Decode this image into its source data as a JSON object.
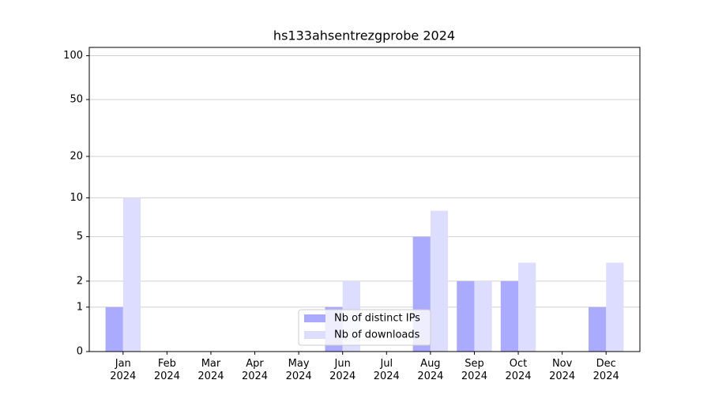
{
  "chart_data": {
    "type": "bar",
    "title": "hs133ahsentrezgprobe 2024",
    "categories": [
      "Jan\n2024",
      "Feb\n2024",
      "Mar\n2024",
      "Apr\n2024",
      "May\n2024",
      "Jun\n2024",
      "Jul\n2024",
      "Aug\n2024",
      "Sep\n2024",
      "Oct\n2024",
      "Nov\n2024",
      "Dec\n2024"
    ],
    "series": [
      {
        "name": "Nb of distinct IPs",
        "color": "#aaaaff",
        "values": [
          1,
          0,
          0,
          0,
          0,
          1,
          0,
          5,
          2,
          2,
          0,
          1
        ]
      },
      {
        "name": "Nb of downloads",
        "color": "#ddddff",
        "values": [
          10,
          0,
          0,
          0,
          0,
          2,
          0,
          8,
          2,
          3,
          0,
          3
        ]
      }
    ],
    "yscale": "log1p",
    "ylim": [
      0,
      114
    ],
    "yticks": [
      0,
      1,
      2,
      5,
      10,
      20,
      50,
      100
    ],
    "grid": true,
    "legend": "lower center"
  }
}
